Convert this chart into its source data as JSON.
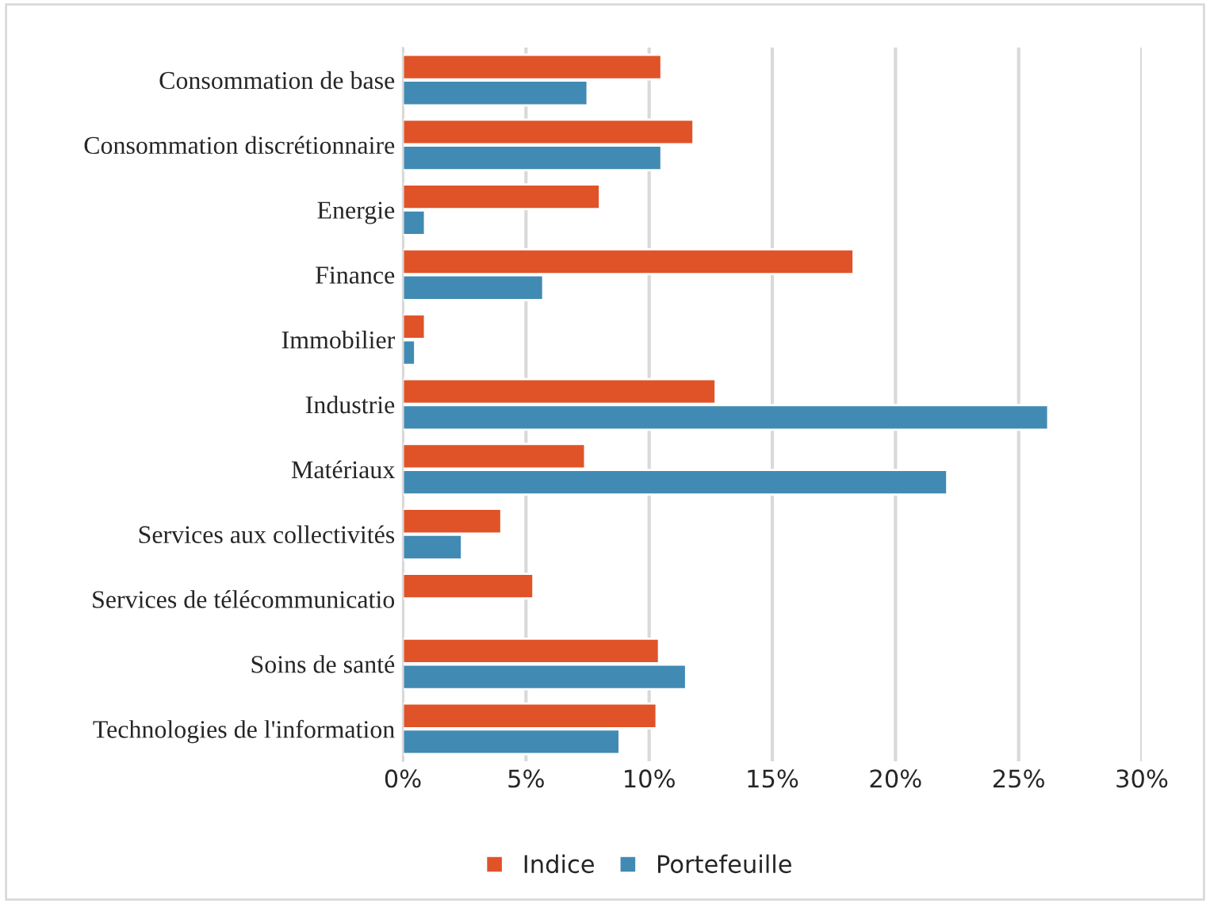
{
  "chart_data": {
    "type": "bar",
    "orientation": "horizontal",
    "categories": [
      "Consommation de base",
      "Consommation discrétionnaire",
      "Energie",
      "Finance",
      "Immobilier",
      "Industrie",
      "Matériaux",
      "Services aux collectivités",
      "Services de télécommunicatio",
      "Soins de santé",
      "Technologies de l'information"
    ],
    "series": [
      {
        "name": "Indice",
        "color": "#e05328",
        "values": [
          10.5,
          11.8,
          8.0,
          18.3,
          0.9,
          12.7,
          7.4,
          4.0,
          5.3,
          10.4,
          10.3
        ]
      },
      {
        "name": "Portefeuille",
        "color": "#418ab3",
        "values": [
          7.5,
          10.5,
          0.9,
          5.7,
          0.5,
          26.2,
          22.1,
          2.4,
          null,
          11.5,
          8.8
        ]
      }
    ],
    "xlim": [
      0,
      30
    ],
    "xticks": [
      {
        "value": 0,
        "label": "0%"
      },
      {
        "value": 5,
        "label": "5%"
      },
      {
        "value": 10,
        "label": "10%"
      },
      {
        "value": 15,
        "label": "15%"
      },
      {
        "value": 20,
        "label": "20%"
      },
      {
        "value": 25,
        "label": "25%"
      },
      {
        "value": 30,
        "label": "30%"
      }
    ],
    "grid": "x",
    "legend": "bottom"
  }
}
